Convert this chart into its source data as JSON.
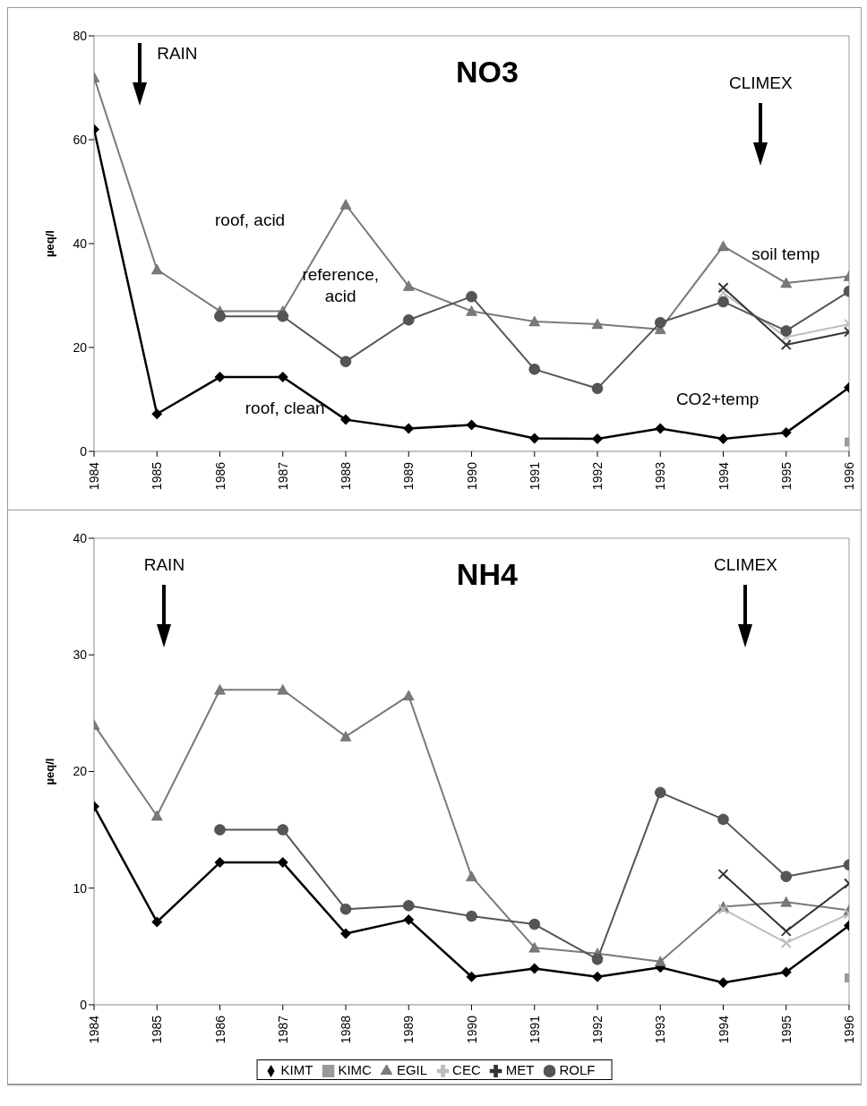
{
  "chart_data": [
    {
      "type": "line",
      "title": "NO3",
      "ylabel": "µeq/l",
      "categories": [
        "1984",
        "1985",
        "1986",
        "1987",
        "1988",
        "1989",
        "1990",
        "1991",
        "1992",
        "1993",
        "1994",
        "1995",
        "1996"
      ],
      "ylim": [
        0,
        80
      ],
      "yticks": [
        0,
        20,
        40,
        60,
        80
      ],
      "annotations": [
        "RAIN",
        "CLIMEX",
        "roof, acid",
        "reference, acid",
        "roof, clean",
        "soil temp",
        "CO2+temp"
      ],
      "series": [
        {
          "color": "#000000",
          "marker": "diamond",
          "values": [
            62,
            7.2,
            14.3,
            14.3,
            6.1,
            4.4,
            5.1,
            2.5,
            2.4,
            4.4,
            2.4,
            3.6,
            12.3
          ]
        },
        {
          "color": "#999999",
          "marker": "square",
          "values": [
            null,
            null,
            null,
            null,
            null,
            null,
            null,
            null,
            null,
            null,
            null,
            null,
            1.8
          ]
        },
        {
          "color": "#7a7a7a",
          "marker": "triangle",
          "values": [
            72,
            35,
            27,
            27,
            47.5,
            31.8,
            27,
            25,
            24.5,
            23.5,
            39.5,
            32.4,
            33.7
          ]
        },
        {
          "color": "#bdbdbd",
          "marker": "cross",
          "values": [
            null,
            null,
            null,
            null,
            null,
            null,
            null,
            null,
            null,
            null,
            30.5,
            22,
            24.5
          ]
        },
        {
          "color": "#333333",
          "marker": "cross",
          "values": [
            null,
            null,
            null,
            null,
            null,
            null,
            null,
            null,
            null,
            null,
            31.5,
            20.5,
            23
          ]
        },
        {
          "color": "#555555",
          "marker": "circle",
          "values": [
            null,
            null,
            26,
            26,
            17.3,
            25.3,
            29.8,
            15.8,
            12.1,
            24.8,
            28.8,
            23.2,
            30.8
          ]
        }
      ]
    },
    {
      "type": "line",
      "title": "NH4",
      "ylabel": "µeq/l",
      "categories": [
        "1984",
        "1985",
        "1986",
        "1987",
        "1988",
        "1989",
        "1990",
        "1991",
        "1992",
        "1993",
        "1994",
        "1995",
        "1996"
      ],
      "ylim": [
        0,
        40
      ],
      "yticks": [
        0,
        10,
        20,
        30,
        40
      ],
      "legend": "bottom",
      "annotations": [
        "RAIN",
        "CLIMEX"
      ],
      "series": [
        {
          "name": "KIMT",
          "color": "#000000",
          "marker": "diamond",
          "values": [
            17,
            7.1,
            12.2,
            12.2,
            6.1,
            7.3,
            2.4,
            3.1,
            2.4,
            3.2,
            1.9,
            2.8,
            6.8
          ]
        },
        {
          "name": "KIMC",
          "color": "#999999",
          "marker": "square",
          "values": [
            null,
            null,
            null,
            null,
            null,
            null,
            null,
            null,
            null,
            null,
            null,
            null,
            2.3
          ]
        },
        {
          "name": "EGIL",
          "color": "#7a7a7a",
          "marker": "triangle",
          "values": [
            24,
            16.2,
            27,
            27,
            23,
            26.5,
            11,
            4.9,
            4.4,
            3.7,
            8.4,
            8.8,
            8.1
          ]
        },
        {
          "name": "CEC",
          "color": "#bdbdbd",
          "marker": "cross",
          "values": [
            null,
            null,
            null,
            null,
            null,
            null,
            null,
            null,
            null,
            null,
            8.2,
            5.3,
            7.8
          ]
        },
        {
          "name": "MET",
          "color": "#333333",
          "marker": "cross",
          "values": [
            null,
            null,
            null,
            null,
            null,
            null,
            null,
            null,
            null,
            null,
            11.2,
            6.3,
            10.4
          ]
        },
        {
          "name": "ROLF",
          "color": "#555555",
          "marker": "circle",
          "values": [
            null,
            null,
            15,
            15,
            8.2,
            8.5,
            7.6,
            6.9,
            3.9,
            18.2,
            15.9,
            11,
            12
          ]
        }
      ]
    }
  ]
}
